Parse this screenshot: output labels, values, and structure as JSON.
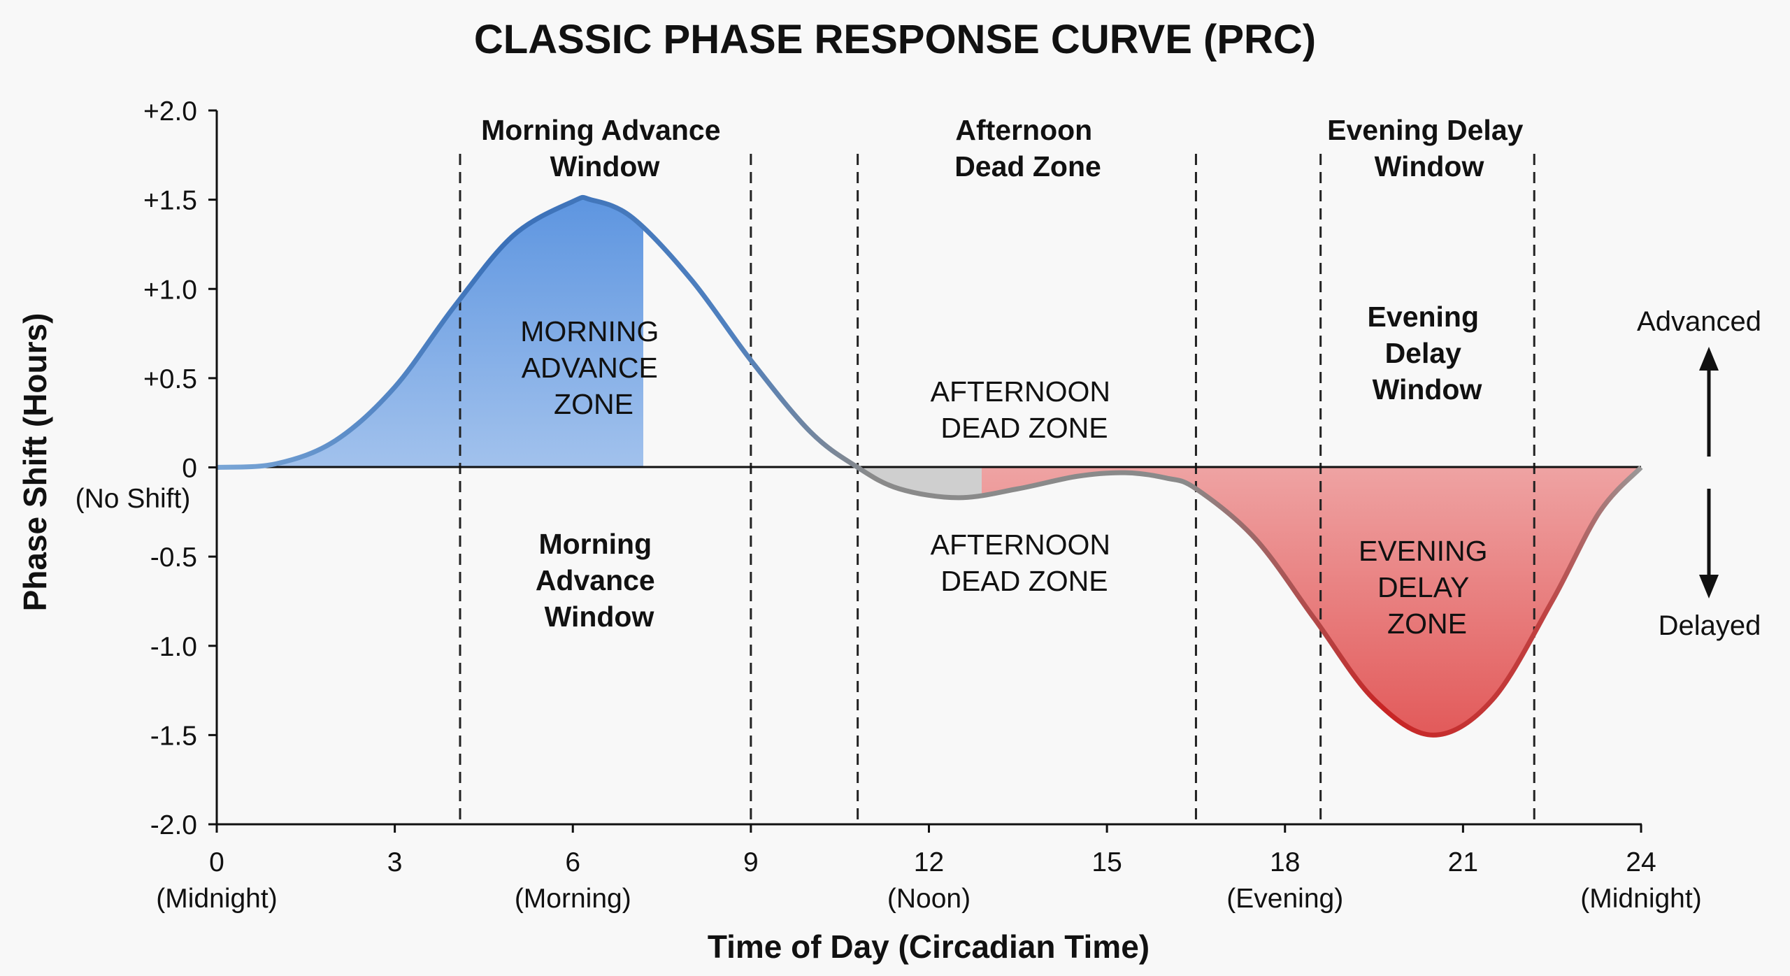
{
  "chart_data": {
    "type": "area",
    "title": "CLASSIC PHASE RESPONSE CURVE (PRC)",
    "xlabel": "Time of Day (Circadian Time)",
    "ylabel": "Phase Shift (Hours)",
    "xlim": [
      0,
      24
    ],
    "ylim": [
      -2.0,
      2.0
    ],
    "grid": false,
    "x_ticks": [
      {
        "value": 0,
        "label": "0",
        "sublabel": "(Midnight)"
      },
      {
        "value": 3,
        "label": "3",
        "sublabel": ""
      },
      {
        "value": 6,
        "label": "6",
        "sublabel": "(Morning)"
      },
      {
        "value": 9,
        "label": "9",
        "sublabel": ""
      },
      {
        "value": 12,
        "label": "12",
        "sublabel": "(Noon)"
      },
      {
        "value": 15,
        "label": "15",
        "sublabel": ""
      },
      {
        "value": 18,
        "label": "18",
        "sublabel": "(Evening)"
      },
      {
        "value": 21,
        "label": "21",
        "sublabel": ""
      },
      {
        "value": 24,
        "label": "24",
        "sublabel": "(Midnight)"
      }
    ],
    "y_ticks": [
      {
        "value": 2.0,
        "label": "+2.0"
      },
      {
        "value": 1.5,
        "label": "+1.5"
      },
      {
        "value": 1.0,
        "label": "+1.0"
      },
      {
        "value": 0.5,
        "label": "+0.5"
      },
      {
        "value": 0,
        "label": "0"
      },
      {
        "value": -0.5,
        "label": "-0.5"
      },
      {
        "value": -1.0,
        "label": "-1.0"
      },
      {
        "value": -1.5,
        "label": "-1.5"
      },
      {
        "value": -2.0,
        "label": "-2.0"
      }
    ],
    "zero_sublabel": "(No Shift)",
    "series": [
      {
        "x": [
          0,
          1,
          2,
          3,
          4,
          5,
          6,
          6.3,
          7,
          8,
          9,
          10,
          10.8,
          11.5,
          12.5,
          13.5,
          14.5,
          15.3,
          16,
          16.5,
          17.5,
          18.5,
          19.5,
          20.5,
          21.5,
          22.5,
          23.3,
          24
        ],
        "y": [
          0,
          0.02,
          0.15,
          0.45,
          0.9,
          1.3,
          1.49,
          1.5,
          1.4,
          1.05,
          0.6,
          0.2,
          0,
          -0.12,
          -0.17,
          -0.12,
          -0.05,
          -0.03,
          -0.06,
          -0.12,
          -0.4,
          -0.85,
          -1.3,
          -1.5,
          -1.3,
          -0.75,
          -0.25,
          0
        ]
      }
    ],
    "region_boundaries": [
      4.1,
      9.0,
      10.8,
      16.5,
      18.6,
      22.2
    ],
    "colors": {
      "advance": "#3f7fcf",
      "dead": "#8a8a8a",
      "delay": "#d02a2a"
    },
    "window_headers": [
      {
        "lines": [
          "Morning Advance",
          "Window"
        ]
      },
      {
        "lines": [
          "Afternoon",
          "Dead Zone"
        ]
      },
      {
        "lines": [
          "Evening Delay",
          "Window"
        ]
      }
    ],
    "zone_labels": {
      "morning_zone": [
        "MORNING",
        "ADVANCE",
        "ZONE"
      ],
      "morning_window": [
        "Morning",
        "Advance",
        "Window"
      ],
      "afternoon_upper": [
        "AFTERNOON",
        "DEAD ZONE"
      ],
      "afternoon_lower": [
        "AFTERNOON",
        "DEAD ZONE"
      ],
      "evening_window": [
        "Evening",
        "Delay",
        "Window"
      ],
      "evening_zone": [
        "EVENING",
        "DELAY",
        "ZONE"
      ]
    },
    "direction_labels": {
      "up": "Advanced",
      "down": "Delayed"
    }
  }
}
